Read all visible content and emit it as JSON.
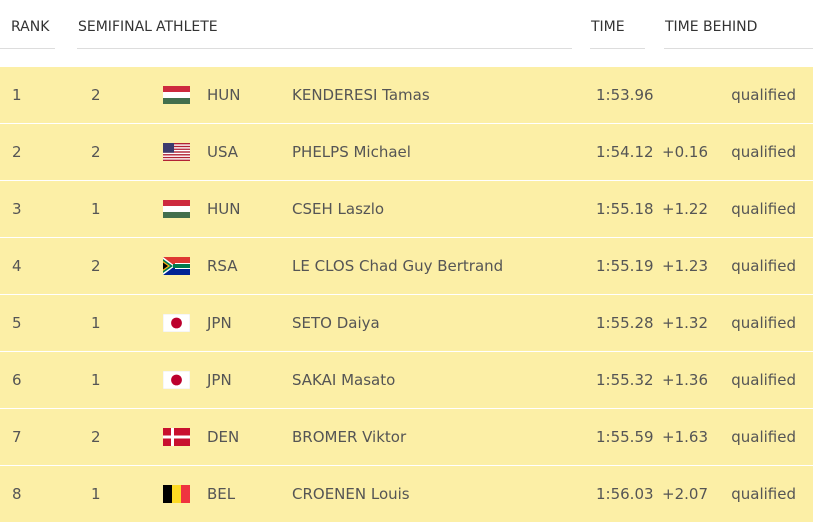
{
  "header": {
    "rank": "RANK",
    "semifinal": "SEMIFINAL",
    "athlete": "ATHLETE",
    "time": "TIME",
    "behind": "TIME BEHIND"
  },
  "table": {
    "rows": [
      {
        "rank": 1,
        "semifinal": 2,
        "country": "HUN",
        "name": "KENDERESI Tamas",
        "time": "1:53.96",
        "status": "qualified"
      },
      {
        "rank": 2,
        "semifinal": 2,
        "country": "USA",
        "name": "PHELPS Michael",
        "time": "1:54.12",
        "behind": "+0.16",
        "status": "qualified"
      },
      {
        "rank": 3,
        "semifinal": 1,
        "country": "HUN",
        "name": "CSEH Laszlo",
        "time": "1:55.18",
        "behind": "+1.22",
        "status": "qualified"
      },
      {
        "rank": 4,
        "semifinal": 2,
        "country": "RSA",
        "name": "LE CLOS Chad Guy Bertrand",
        "time": "1:55.19",
        "behind": "+1.23",
        "status": "qualified"
      },
      {
        "rank": 5,
        "semifinal": 1,
        "country": "JPN",
        "name": "SETO Daiya",
        "time": "1:55.28",
        "behind": "+1.32",
        "status": "qualified"
      },
      {
        "rank": 6,
        "semifinal": 1,
        "country": "JPN",
        "name": "SAKAI Masato",
        "time": "1:55.32",
        "behind": "+1.36",
        "status": "qualified"
      },
      {
        "rank": 7,
        "semifinal": 2,
        "country": "DEN",
        "name": "BROMER Viktor",
        "time": "1:55.59",
        "behind": "+1.63",
        "status": "qualified"
      },
      {
        "rank": 8,
        "semifinal": 1,
        "country": "BEL",
        "name": "CROENEN Louis",
        "time": "1:56.03",
        "behind": "+2.07",
        "status": "qualified"
      }
    ]
  }
}
